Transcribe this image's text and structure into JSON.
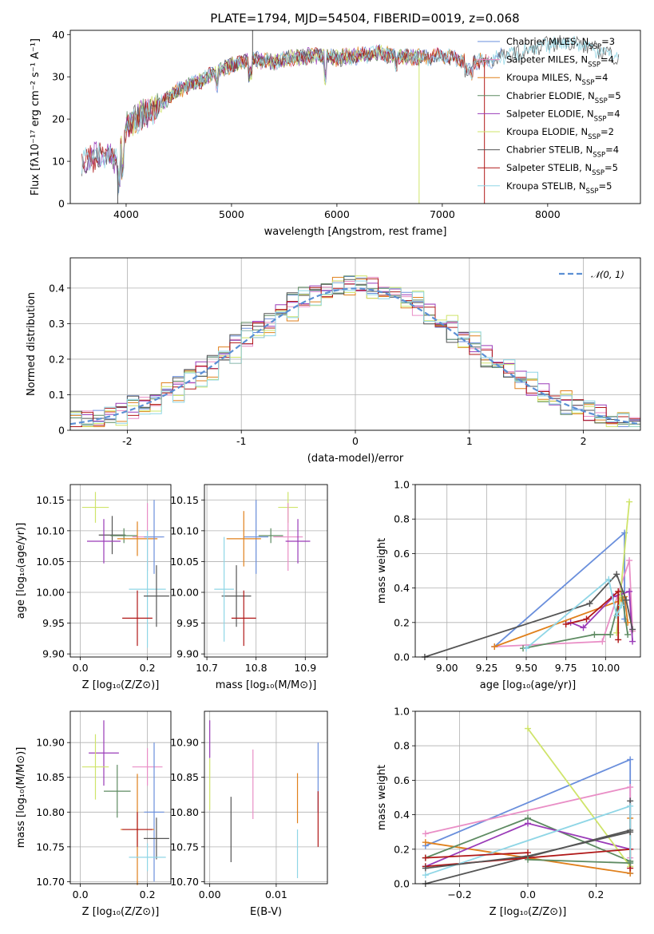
{
  "chart_data": [
    {
      "id": "spectrum",
      "type": "line",
      "title": "PLATE=1794, MJD=54504, FIBERID=0019, z=0.068",
      "xlabel": "wavelength [Angstrom, rest frame]",
      "ylabel": "Flux [f$_\\lambda$10$^{-17}$ erg cm$^{-2}$ s$^{-1}$ A$^{-1}$]",
      "ylabel_display": "Flux [fλ10⁻¹⁷ erg cm⁻² s⁻¹ A⁻¹]",
      "xlim": [
        3470,
        8880
      ],
      "ylim": [
        0,
        41
      ],
      "xticks": [
        4000,
        5000,
        6000,
        7000,
        8000
      ],
      "yticks": [
        0,
        10,
        20,
        30,
        40
      ],
      "grid": false,
      "legend_placement": "right",
      "series_style": {
        "Chabrier MILES, N_SSP=3": "#6a8fdc",
        "Salpeter MILES, N_SSP=4": "#e98ec6",
        "Kroupa MILES, N_SSP=4": "#e0801c",
        "Chabrier ELODIE, N_SSP=5": "#5e8b62",
        "Salpeter ELODIE, N_SSP=4": "#9a3bb8",
        "Kroupa ELODIE, N_SSP=2": "#cfe46a",
        "Chabrier STELIB, N_SSP=4": "#555555",
        "Salpeter STELIB, N_SSP=5": "#b01818",
        "Kroupa STELIB, N_SSP=5": "#8fd6e6"
      },
      "series": [
        {
          "name": "Chabrier MILES, N$_{SSP}$=3",
          "color": "#6a8fdc",
          "x_range": [
            3930,
            7570
          ]
        },
        {
          "name": "Salpeter MILES, N$_{SSP}$=4",
          "color": "#e98ec6",
          "x_range": [
            4000,
            7450
          ]
        },
        {
          "name": "Kroupa MILES, N$_{SSP}$=4",
          "color": "#e0801c",
          "x_range": [
            3950,
            7420
          ]
        },
        {
          "name": "Chabrier ELODIE, N$_{SSP}$=5",
          "color": "#5e8b62",
          "x_range": [
            4000,
            6800
          ]
        },
        {
          "name": "Salpeter ELODIE, N$_{SSP}$=4",
          "color": "#9a3bb8",
          "x_range": [
            3600,
            6800
          ]
        },
        {
          "name": "Kroupa ELODIE, N$_{SSP}$=2",
          "color": "#cfe46a",
          "x_range": [
            3920,
            6800
          ]
        },
        {
          "name": "Chabrier STELIB, N$_{SSP}$=4",
          "color": "#555555",
          "x_range": [
            3580,
            8680
          ]
        },
        {
          "name": "Salpeter STELIB, N$_{SSP}$=5",
          "color": "#b01818",
          "x_range": [
            3580,
            7420
          ]
        },
        {
          "name": "Kroupa STELIB, N$_{SSP}$=5",
          "color": "#8fd6e6",
          "x_range": [
            3580,
            8680
          ]
        }
      ],
      "continuum": {
        "x": [
          3580,
          3700,
          3850,
          3920,
          4000,
          4150,
          4300,
          4500,
          4700,
          4900,
          5000,
          5200,
          5400,
          5600,
          5800,
          6000,
          6200,
          6400,
          6600,
          6800,
          7000,
          7200,
          7400,
          7600,
          7800,
          8000,
          8200,
          8400,
          8600,
          8680
        ],
        "y": [
          10,
          11,
          12,
          9,
          18,
          21,
          23,
          27,
          29,
          31.5,
          33,
          34,
          33.5,
          34.5,
          35,
          34.5,
          35,
          35.5,
          35,
          34.5,
          35,
          34,
          33.5,
          35,
          36,
          37.5,
          38.5,
          37,
          35.5,
          34
        ]
      },
      "spikes": [
        {
          "x": 3920,
          "y": 0
        },
        {
          "x": 5200,
          "y": 41
        },
        {
          "x": 6780,
          "y": 0
        },
        {
          "x": 7400,
          "y": 0
        }
      ]
    },
    {
      "id": "residuals",
      "type": "histogram",
      "xlabel": "(data-model)/error",
      "ylabel": "Normed distribution",
      "xlim": [
        -2.5,
        2.5
      ],
      "ylim": [
        0,
        0.485
      ],
      "xticks": [
        -2,
        -1,
        0,
        1,
        2
      ],
      "yticks": [
        0.0,
        0.1,
        0.2,
        0.3,
        0.4
      ],
      "grid": true,
      "legend_placement": "top-right",
      "legend": [
        {
          "label": "$\\mathcal{N}(0,1)$",
          "label_display": "𝒩(0, 1)",
          "color": "#5b8fd4",
          "style": "dashed"
        }
      ],
      "bin_width": 0.1,
      "bins_from": -2.5,
      "series_colors": [
        "#6a8fdc",
        "#e98ec6",
        "#e0801c",
        "#5e8b62",
        "#9a3bb8",
        "#cfe46a",
        "#555555",
        "#b01818",
        "#8fd6e6"
      ],
      "jitter": [
        0.018,
        -0.02,
        0.012,
        -0.008,
        0.025,
        -0.015,
        0.006,
        -0.024,
        0.017,
        -0.011,
        0.021,
        -0.005,
        0.014,
        -0.019,
        0.009
      ]
    },
    {
      "id": "age-vs-Z",
      "type": "scatter",
      "xlabel": "Z [log$_{10}$($Z/Z_\\odot$)]",
      "xlabel_display": "Z [log₁₀(Z/Z⊙)]",
      "ylabel": "age  [log$_{10}$($age/yr$)]",
      "ylabel_display": "age  [log₁₀(age/yr)]",
      "xlim": [
        -0.03,
        0.27
      ],
      "ylim": [
        9.895,
        10.175
      ],
      "xticks": [
        0.0,
        0.2
      ],
      "xtick_labels": [
        "0.0",
        "0.2"
      ],
      "yticks": [
        9.9,
        9.95,
        10.0,
        10.05,
        10.1,
        10.15
      ],
      "ytick_labels": [
        "9.90",
        "9.95",
        "10.00",
        "10.05",
        "10.10",
        "10.15"
      ],
      "grid": true,
      "points": [
        {
          "color": "#cfe46a",
          "x": 0.045,
          "xerr": 0.04,
          "y": 10.138,
          "yerr": 0.025
        },
        {
          "color": "#555555",
          "x": 0.095,
          "xerr": 0.04,
          "y": 10.093,
          "yerr": 0.031
        },
        {
          "color": "#5e8b62",
          "x": 0.13,
          "xerr": 0.04,
          "y": 10.092,
          "yerr": 0.012
        },
        {
          "color": "#9a3bb8",
          "x": 0.07,
          "xerr": 0.05,
          "y": 10.083,
          "yerr": 0.036
        },
        {
          "color": "#e98ec6",
          "x": 0.2,
          "xerr": 0.045,
          "y": 10.09,
          "yerr": 0.055
        },
        {
          "color": "#e0801c",
          "x": 0.17,
          "xerr": 0.06,
          "y": 10.087,
          "yerr": 0.028
        },
        {
          "color": "#6a8fdc",
          "x": 0.22,
          "xerr": 0.03,
          "y": 10.09,
          "yerr": 0.06
        },
        {
          "color": "#8fd6e6",
          "x": 0.2,
          "xerr": 0.055,
          "y": 10.005,
          "yerr": 0.095
        },
        {
          "color": "#555555",
          "x": 0.227,
          "xerr": 0.038,
          "y": 9.994,
          "yerr": 0.05
        },
        {
          "color": "#b01818",
          "x": 0.17,
          "xerr": 0.045,
          "y": 9.958,
          "yerr": 0.045
        }
      ]
    },
    {
      "id": "age-vs-mass",
      "type": "scatter",
      "xlabel": "mass [log$_{10}$($M/M_\\odot$)]",
      "xlabel_display": "mass [log₁₀(M/M⊙)]",
      "xlim": [
        10.695,
        10.945
      ],
      "ylim": [
        9.895,
        10.175
      ],
      "xticks": [
        10.7,
        10.8,
        10.9
      ],
      "xtick_labels": [
        "10.7",
        "10.8",
        "10.9"
      ],
      "yticks": [
        9.9,
        9.95,
        10.0,
        10.05,
        10.1,
        10.15
      ],
      "ytick_labels": [
        "9.90",
        "9.95",
        "10.00",
        "10.05",
        "10.10",
        "10.15"
      ],
      "grid": true,
      "points": [
        {
          "color": "#cfe46a",
          "x": 10.865,
          "xerr": 0.02,
          "y": 10.138,
          "yerr": 0.025
        },
        {
          "color": "#6a8fdc",
          "x": 10.8,
          "xerr": 0.025,
          "y": 10.09,
          "yerr": 0.06
        },
        {
          "color": "#5e8b62",
          "x": 10.83,
          "xerr": 0.025,
          "y": 10.092,
          "yerr": 0.012
        },
        {
          "color": "#e0801c",
          "x": 10.775,
          "xerr": 0.035,
          "y": 10.087,
          "yerr": 0.045
        },
        {
          "color": "#e98ec6",
          "x": 10.865,
          "xerr": 0.03,
          "y": 10.09,
          "yerr": 0.055
        },
        {
          "color": "#9a3bb8",
          "x": 10.885,
          "xerr": 0.025,
          "y": 10.083,
          "yerr": 0.036
        },
        {
          "color": "#555555",
          "x": 10.76,
          "xerr": 0.03,
          "y": 9.994,
          "yerr": 0.05
        },
        {
          "color": "#8fd6e6",
          "x": 10.735,
          "xerr": 0.02,
          "y": 10.005,
          "yerr": 0.085
        },
        {
          "color": "#b01818",
          "x": 10.775,
          "xerr": 0.025,
          "y": 9.958,
          "yerr": 0.045
        }
      ]
    },
    {
      "id": "weight-vs-age",
      "type": "line",
      "xlabel": "age  [log$_{10}$($age/yr$)]",
      "xlabel_display": "age  [log₁₀(age/yr)]",
      "ylabel": "mass weight",
      "xlim": [
        8.8,
        10.22
      ],
      "ylim": [
        0,
        1
      ],
      "xticks": [
        9.0,
        9.25,
        9.5,
        9.75,
        10.0
      ],
      "xtick_labels": [
        "9.00",
        "9.25",
        "9.50",
        "9.75",
        "10.00"
      ],
      "yticks": [
        0,
        0.2,
        0.4,
        0.6,
        0.8,
        1.0
      ],
      "ytick_labels": [
        "0.0",
        "0.2",
        "0.4",
        "0.6",
        "0.8",
        "1.0"
      ],
      "grid": true,
      "series": [
        {
          "color": "#6a8fdc",
          "x": [
            9.3,
            10.12,
            10.12
          ],
          "y": [
            0.06,
            0.72,
            0.22
          ]
        },
        {
          "color": "#e98ec6",
          "x": [
            9.3,
            9.98,
            10.15,
            10.17
          ],
          "y": [
            0.06,
            0.09,
            0.56,
            0.15
          ]
        },
        {
          "color": "#e0801c",
          "x": [
            9.3,
            10.1,
            10.12,
            10.14
          ],
          "y": [
            0.06,
            0.33,
            0.35,
            0.2
          ]
        },
        {
          "color": "#5e8b62",
          "x": [
            9.48,
            9.93,
            10.03,
            10.1,
            10.14
          ],
          "y": [
            0.05,
            0.13,
            0.13,
            0.38,
            0.13
          ]
        },
        {
          "color": "#9a3bb8",
          "x": [
            9.78,
            9.86,
            10.05,
            10.15,
            10.17
          ],
          "y": [
            0.2,
            0.17,
            0.35,
            0.38,
            0.09
          ]
        },
        {
          "color": "#cfe46a",
          "x": [
            10.07,
            10.15
          ],
          "y": [
            0.14,
            0.9
          ]
        },
        {
          "color": "#555555",
          "x": [
            8.86,
            9.9,
            10.07,
            10.13,
            10.17
          ],
          "y": [
            0.0,
            0.31,
            0.48,
            0.33,
            0.16
          ]
        },
        {
          "color": "#b01818",
          "x": [
            9.75,
            9.88,
            10.08,
            10.08
          ],
          "y": [
            0.19,
            0.22,
            0.38,
            0.1
          ]
        },
        {
          "color": "#8fd6e6",
          "x": [
            9.5,
            10.02,
            10.07,
            10.1
          ],
          "y": [
            0.05,
            0.45,
            0.24,
            0.3
          ]
        }
      ]
    },
    {
      "id": "mass-vs-Z",
      "type": "scatter",
      "xlabel": "Z [log$_{10}$($Z/Z_\\odot$)]",
      "xlabel_display": "Z [log₁₀(Z/Z⊙)]",
      "ylabel": "mass [log$_{10}$($M/M_\\odot$)]",
      "ylabel_display": "mass [log₁₀(M/M⊙)]",
      "xlim": [
        -0.03,
        0.27
      ],
      "ylim": [
        10.697,
        10.945
      ],
      "xticks": [
        0.0,
        0.2
      ],
      "xtick_labels": [
        "0.0",
        "0.2"
      ],
      "yticks": [
        10.7,
        10.75,
        10.8,
        10.85,
        10.9
      ],
      "ytick_labels": [
        "10.70",
        "10.75",
        "10.80",
        "10.85",
        "10.90"
      ],
      "grid": true,
      "points": [
        {
          "color": "#9a3bb8",
          "x": 0.07,
          "xerr": 0.045,
          "y": 10.885,
          "yerr": 0.047
        },
        {
          "color": "#cfe46a",
          "x": 0.045,
          "xerr": 0.04,
          "y": 10.865,
          "yerr": 0.047
        },
        {
          "color": "#e98ec6",
          "x": 0.2,
          "xerr": 0.045,
          "y": 10.865,
          "yerr": 0.027
        },
        {
          "color": "#5e8b62",
          "x": 0.11,
          "xerr": 0.04,
          "y": 10.83,
          "yerr": 0.038
        },
        {
          "color": "#6a8fdc",
          "x": 0.22,
          "xerr": 0.03,
          "y": 10.8,
          "yerr": 0.1
        },
        {
          "color": "#e0801c",
          "x": 0.17,
          "xerr": 0.05,
          "y": 10.775,
          "yerr": 0.08
        },
        {
          "color": "#b01818",
          "x": 0.17,
          "xerr": 0.045,
          "y": 10.775,
          "yerr": 0.025
        },
        {
          "color": "#555555",
          "x": 0.227,
          "xerr": 0.038,
          "y": 10.762,
          "yerr": 0.03
        },
        {
          "color": "#8fd6e6",
          "x": 0.2,
          "xerr": 0.055,
          "y": 10.735,
          "yerr": 0.02
        }
      ]
    },
    {
      "id": "mass-vs-EBV",
      "type": "scatter",
      "xlabel": "E(B-V)",
      "xlim": [
        -0.0008,
        0.0177
      ],
      "ylim": [
        10.697,
        10.945
      ],
      "xticks": [
        0.0,
        0.01
      ],
      "xtick_labels": [
        "0.00",
        "0.01"
      ],
      "yticks": [
        10.7,
        10.75,
        10.8,
        10.85,
        10.9
      ],
      "ytick_labels": [
        "10.70",
        "10.75",
        "10.80",
        "10.85",
        "10.90"
      ],
      "grid": true,
      "points": [
        {
          "color": "#9a3bb8",
          "x": 0.0,
          "y": 10.905,
          "yerr": 0.027
        },
        {
          "color": "#cfe46a",
          "x": 0.0,
          "y": 10.84,
          "yerr": 0.037
        },
        {
          "color": "#555555",
          "x": 0.0032,
          "y": 10.775,
          "yerr": 0.047
        },
        {
          "color": "#e98ec6",
          "x": 0.0065,
          "y": 10.84,
          "yerr": 0.05
        },
        {
          "color": "#e0801c",
          "x": 0.0132,
          "y": 10.82,
          "yerr": 0.036
        },
        {
          "color": "#8fd6e6",
          "x": 0.0132,
          "y": 10.74,
          "yerr": 0.035
        },
        {
          "color": "#6a8fdc",
          "x": 0.0163,
          "y": 10.85,
          "yerr": 0.05
        },
        {
          "color": "#b01818",
          "x": 0.0163,
          "y": 10.79,
          "yerr": 0.04
        }
      ]
    },
    {
      "id": "weight-vs-Z",
      "type": "line",
      "xlabel": "Z [log$_{10}$($Z/Z_\\odot$)]",
      "xlabel_display": "Z [log₁₀(Z/Z⊙)]",
      "ylabel": "mass weight",
      "xlim": [
        -0.33,
        0.33
      ],
      "ylim": [
        0,
        1
      ],
      "xticks": [
        -0.2,
        0.0,
        0.2
      ],
      "xtick_labels": [
        "−0.2",
        "0.0",
        "0.2"
      ],
      "yticks": [
        0,
        0.2,
        0.4,
        0.6,
        0.8,
        1.0
      ],
      "ytick_labels": [
        "0.0",
        "0.2",
        "0.4",
        "0.6",
        "0.8",
        "1.0"
      ],
      "grid": true,
      "series": [
        {
          "color": "#6a8fdc",
          "x": [
            -0.3,
            0.3,
            0.3
          ],
          "y": [
            0.22,
            0.72,
            0.06
          ]
        },
        {
          "color": "#e98ec6",
          "x": [
            -0.3,
            0.3,
            0.3
          ],
          "y": [
            0.29,
            0.56,
            0.15
          ]
        },
        {
          "color": "#e0801c",
          "x": [
            -0.3,
            0.3,
            0.3
          ],
          "y": [
            0.24,
            0.06,
            0.38
          ]
        },
        {
          "color": "#5e8b62",
          "x": [
            -0.3,
            0.0,
            0.3,
            0.3
          ],
          "y": [
            0.15,
            0.38,
            0.13,
            0.13
          ]
        },
        {
          "color": "#9a3bb8",
          "x": [
            -0.3,
            0.0,
            0.3,
            0.3
          ],
          "y": [
            0.1,
            0.35,
            0.2,
            0.2
          ]
        },
        {
          "color": "#cfe46a",
          "x": [
            0.0,
            0.3
          ],
          "y": [
            0.9,
            0.1
          ]
        },
        {
          "color": "#555555",
          "x": [
            -0.3,
            0.3,
            0.3
          ],
          "y": [
            0.0,
            0.31,
            0.48
          ]
        },
        {
          "color": "#b01818",
          "x": [
            -0.3,
            0.3,
            0.3
          ],
          "y": [
            0.1,
            0.2,
            0.09
          ]
        },
        {
          "color": "#8fd6e6",
          "x": [
            -0.3,
            0.3,
            0.3
          ],
          "y": [
            0.05,
            0.45,
            0.12
          ]
        },
        {
          "color": "#555555",
          "x": [
            -0.3,
            0.0,
            0.3
          ],
          "y": [
            0.09,
            0.16,
            0.3
          ]
        },
        {
          "color": "#5e8b62",
          "x": [
            0.0,
            0.3
          ],
          "y": [
            0.14,
            0.12
          ]
        },
        {
          "color": "#b01818",
          "x": [
            -0.3,
            0.0
          ],
          "y": [
            0.15,
            0.18
          ]
        }
      ]
    }
  ]
}
